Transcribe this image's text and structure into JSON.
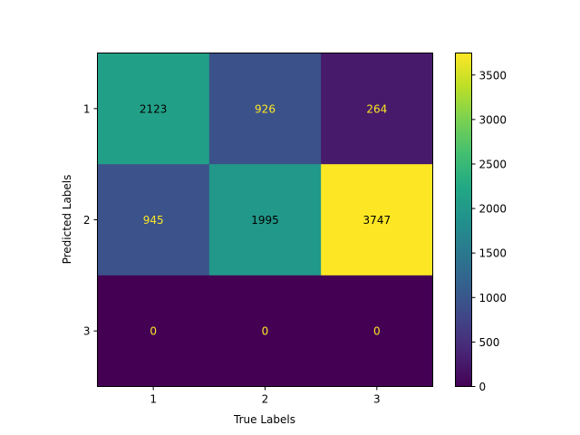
{
  "chart_data": {
    "type": "heatmap",
    "title": "",
    "xlabel": "True Labels",
    "ylabel": "Predicted Labels",
    "x_categories": [
      "1",
      "2",
      "3"
    ],
    "y_categories": [
      "1",
      "2",
      "3"
    ],
    "values": [
      [
        2123,
        926,
        264
      ],
      [
        945,
        1995,
        3747
      ],
      [
        0,
        0,
        0
      ]
    ],
    "colormap": "viridis",
    "vmin": 0,
    "vmax": 3747,
    "colorbar_ticks": [
      0,
      500,
      1000,
      1500,
      2000,
      2500,
      3000,
      3500
    ],
    "annotation_colors": {
      "on_dark": "#fde725",
      "on_light": "#000000"
    }
  }
}
